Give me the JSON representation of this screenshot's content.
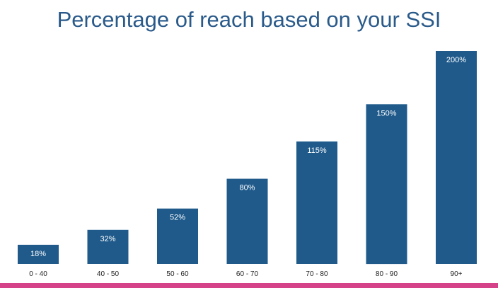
{
  "chart_data": {
    "type": "bar",
    "title": "Percentage of reach based on your SSI",
    "categories": [
      "0 - 40",
      "40 - 50",
      "50 - 60",
      "60 - 70",
      "70 - 80",
      "80 - 90",
      "90+"
    ],
    "values": [
      18,
      32,
      52,
      80,
      115,
      150,
      200
    ],
    "data_labels": [
      "18%",
      "32%",
      "52%",
      "80%",
      "115%",
      "150%",
      "200%"
    ],
    "xlabel": "",
    "ylabel": "",
    "ylim": [
      0,
      200
    ],
    "grid": false,
    "legend": "none"
  },
  "colors": {
    "title": "#2a5a8a",
    "bar": "#1f5a8b",
    "bar_label": "#ffffff",
    "axis_label": "#222222",
    "bottom_bar": "#d6428a"
  }
}
